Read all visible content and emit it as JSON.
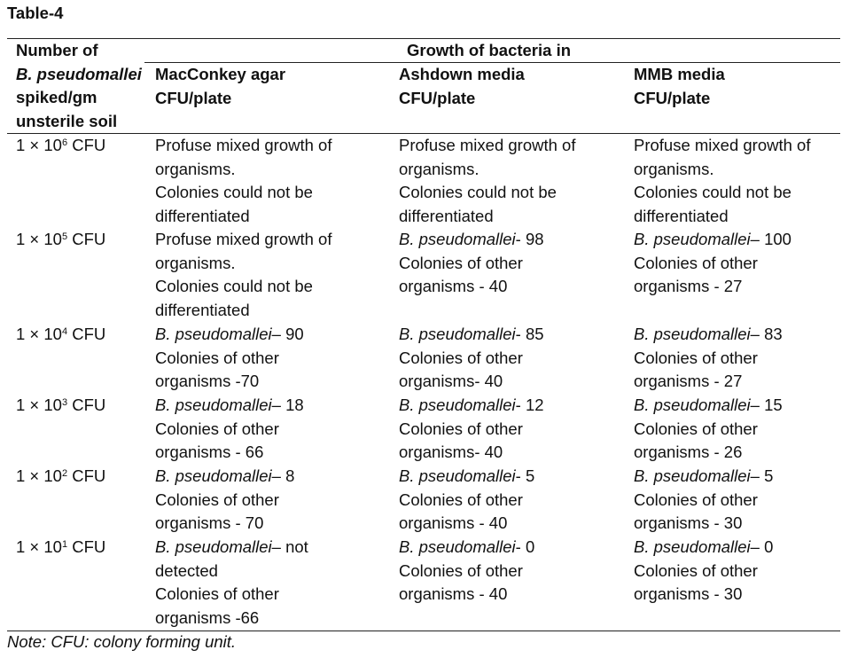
{
  "title": "Table-4",
  "header": {
    "col1_lines": [
      {
        "t": "Number of"
      },
      {
        "i": "B. pseudomallei",
        "t": ""
      },
      {
        "t": "spiked/gm"
      },
      {
        "t": "unsterile soil"
      }
    ],
    "group": "Growth of bacteria in",
    "media": [
      {
        "name": "MacConkey agar",
        "unit": "CFU/plate"
      },
      {
        "name": "Ashdown media",
        "unit": "CFU/plate"
      },
      {
        "name": "MMB media",
        "unit": "CFU/plate"
      }
    ]
  },
  "rows": [
    {
      "dose": {
        "base": "1 × 10",
        "exp": "6",
        "suffix": " CFU"
      },
      "cells": [
        [
          {
            "t": "Profuse mixed growth of"
          },
          {
            "t": "organisms."
          },
          {
            "t": "Colonies could not be"
          },
          {
            "t": "differentiated"
          }
        ],
        [
          {
            "t": "Profuse mixed growth of"
          },
          {
            "t": "organisms."
          },
          {
            "t": "Colonies could not be"
          },
          {
            "t": "differentiated"
          }
        ],
        [
          {
            "t": "Profuse mixed growth of"
          },
          {
            "t": "organisms."
          },
          {
            "t": "Colonies could not be"
          },
          {
            "t": "differentiated"
          }
        ]
      ]
    },
    {
      "dose": {
        "base": "1 × 10",
        "exp": "5",
        "suffix": " CFU"
      },
      "cells": [
        [
          {
            "t": "Profuse mixed growth of"
          },
          {
            "t": "organisms."
          },
          {
            "t": "Colonies could not be"
          },
          {
            "t": "differentiated"
          }
        ],
        [
          {
            "i": "B. pseudomallei",
            "t": "- 98"
          },
          {
            "t": "Colonies of other"
          },
          {
            "t": "organisms - 40"
          }
        ],
        [
          {
            "i": "B. pseudomallei",
            "t": "– 100"
          },
          {
            "t": "Colonies of other"
          },
          {
            "t": "organisms - 27"
          }
        ]
      ]
    },
    {
      "dose": {
        "base": "1 × 10",
        "exp": "4",
        "suffix": " CFU"
      },
      "cells": [
        [
          {
            "i": "B. pseudomallei",
            "t": "– 90"
          },
          {
            "t": "Colonies of other"
          },
          {
            "t": "organisms -70"
          }
        ],
        [
          {
            "i": "B. pseudomallei",
            "t": "- 85"
          },
          {
            "t": "Colonies of other"
          },
          {
            "t": "organisms- 40"
          }
        ],
        [
          {
            "i": "B. pseudomallei",
            "t": "– 83"
          },
          {
            "t": "Colonies of other"
          },
          {
            "t": "organisms - 27"
          }
        ]
      ]
    },
    {
      "dose": {
        "base": "1 × 10",
        "exp": "3",
        "suffix": " CFU"
      },
      "cells": [
        [
          {
            "i": "B. pseudomallei",
            "t": "– 18"
          },
          {
            "t": "Colonies of other"
          },
          {
            "t": "organisms - 66"
          }
        ],
        [
          {
            "i": "B. pseudomallei",
            "t": "- 12"
          },
          {
            "t": "Colonies of other"
          },
          {
            "t": "organisms- 40"
          }
        ],
        [
          {
            "i": "B. pseudomallei",
            "t": "– 15"
          },
          {
            "t": "Colonies of other"
          },
          {
            "t": "organisms - 26"
          }
        ]
      ]
    },
    {
      "dose": {
        "base": "1 × 10",
        "exp": "2",
        "suffix": " CFU"
      },
      "cells": [
        [
          {
            "i": "B. pseudomallei",
            "t": "– 8"
          },
          {
            "t": "Colonies of other"
          },
          {
            "t": "organisms - 70"
          }
        ],
        [
          {
            "i": "B. pseudomallei",
            "t": "- 5"
          },
          {
            "t": "Colonies of other"
          },
          {
            "t": "organisms - 40"
          }
        ],
        [
          {
            "i": "B. pseudomallei",
            "t": "– 5"
          },
          {
            "t": "Colonies of other"
          },
          {
            "t": "organisms - 30"
          }
        ]
      ]
    },
    {
      "dose": {
        "base": "1 × 10",
        "exp": "1",
        "suffix": " CFU"
      },
      "cells": [
        [
          {
            "i": "B. pseudomallei",
            "t": "– not"
          },
          {
            "t": "detected"
          },
          {
            "t": "Colonies of other"
          },
          {
            "t": "organisms -66"
          }
        ],
        [
          {
            "i": "B. pseudomallei",
            "t": "- 0"
          },
          {
            "t": "Colonies of other"
          },
          {
            "t": "organisms - 40"
          }
        ],
        [
          {
            "i": "B. pseudomallei",
            "t": "– 0"
          },
          {
            "t": "Colonies of other"
          },
          {
            "t": "organisms  - 30"
          }
        ]
      ]
    }
  ],
  "note": "Note: CFU: colony forming unit."
}
